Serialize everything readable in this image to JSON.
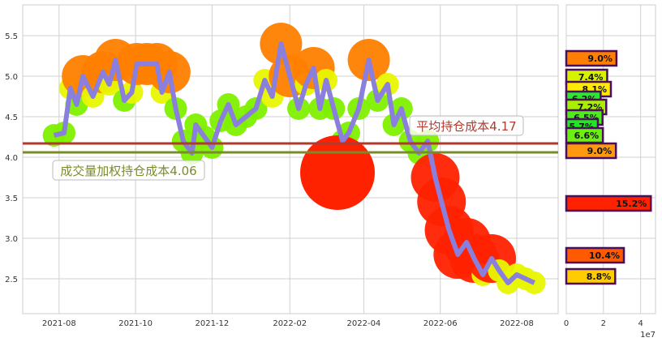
{
  "chart_data": [
    {
      "type": "line",
      "title": "",
      "xlabel": "",
      "ylabel": "",
      "ylim": [
        2.07,
        5.88
      ],
      "xlim": [
        "2021-07-03",
        "2022-09-03"
      ],
      "grid": true,
      "x_ticks": [
        "2021-08",
        "2021-10",
        "2021-12",
        "2022-02",
        "2022-04",
        "2022-06",
        "2022-08"
      ],
      "y_ticks": [
        "2.5",
        "3.0",
        "3.5",
        "4.0",
        "4.5",
        "5.0",
        "5.5"
      ],
      "line_color": "#8a7fdc",
      "x": [
        "2021-07-28",
        "2021-08-05",
        "2021-08-10",
        "2021-08-15",
        "2021-08-20",
        "2021-08-28",
        "2021-09-05",
        "2021-09-10",
        "2021-09-15",
        "2021-09-22",
        "2021-09-28",
        "2021-10-02",
        "2021-10-10",
        "2021-10-18",
        "2021-10-22",
        "2021-10-28",
        "2021-11-02",
        "2021-11-08",
        "2021-11-15",
        "2021-11-18",
        "2021-11-25",
        "2021-12-01",
        "2021-12-08",
        "2021-12-14",
        "2021-12-20",
        "2021-12-28",
        "2022-01-05",
        "2022-01-12",
        "2022-01-18",
        "2022-01-25",
        "2022-02-01",
        "2022-02-08",
        "2022-02-14",
        "2022-02-20",
        "2022-02-25",
        "2022-03-02",
        "2022-03-08",
        "2022-03-15",
        "2022-03-20",
        "2022-03-28",
        "2022-04-05",
        "2022-04-12",
        "2022-04-20",
        "2022-04-25",
        "2022-05-01",
        "2022-05-08",
        "2022-05-15",
        "2022-05-22",
        "2022-05-28",
        "2022-06-02",
        "2022-06-08",
        "2022-06-15",
        "2022-06-22",
        "2022-06-28",
        "2022-07-05",
        "2022-07-12",
        "2022-07-18",
        "2022-07-25",
        "2022-08-01",
        "2022-08-08",
        "2022-08-15"
      ],
      "y": [
        4.27,
        4.3,
        4.85,
        4.65,
        5.0,
        4.75,
        5.05,
        4.9,
        5.2,
        4.7,
        4.8,
        5.15,
        5.15,
        5.15,
        4.8,
        5.05,
        4.6,
        4.2,
        4.05,
        4.4,
        4.25,
        4.12,
        4.45,
        4.65,
        4.4,
        4.5,
        4.6,
        4.95,
        4.75,
        5.4,
        5.0,
        4.6,
        4.9,
        5.1,
        4.6,
        4.95,
        4.6,
        4.2,
        4.3,
        4.6,
        5.2,
        4.7,
        4.9,
        4.4,
        4.6,
        4.2,
        4.05,
        4.2,
        3.75,
        3.45,
        3.1,
        2.8,
        2.95,
        2.75,
        2.55,
        2.75,
        2.6,
        2.45,
        2.55,
        2.5,
        2.45
      ],
      "hlines": [
        {
          "label": "平均持仓成本4.17",
          "value": 4.17,
          "color": "#b03a2e"
        },
        {
          "label": "成交量加权持仓成本4.06",
          "value": 4.06,
          "color": "#7a8c2a"
        }
      ]
    },
    {
      "type": "bar",
      "orientation": "horizontal",
      "xlim": [
        0,
        4.8
      ],
      "x_ticks": [
        "0",
        "2",
        "4"
      ],
      "x_scale_label": "1e7",
      "bars": [
        {
          "price": 5.22,
          "value": 2.7,
          "label": "9.0%",
          "color": "#ff7f00"
        },
        {
          "price": 4.99,
          "value": 2.2,
          "label": "7.4%",
          "color": "#d7f200"
        },
        {
          "price": 4.84,
          "value": 2.4,
          "label": "8.1%",
          "color": "#ffea00"
        },
        {
          "price": 4.72,
          "value": 1.85,
          "label": "6.2%",
          "color": "#2ee62e"
        },
        {
          "price": 4.62,
          "value": 2.15,
          "label": "7.2%",
          "color": "#a8f000"
        },
        {
          "price": 4.49,
          "value": 1.95,
          "label": "6.5%",
          "color": "#50ea20"
        },
        {
          "price": 4.38,
          "value": 1.7,
          "label": "5.7%",
          "color": "#1ee81e"
        },
        {
          "price": 4.27,
          "value": 1.97,
          "label": "6.6%",
          "color": "#6cf010"
        },
        {
          "price": 4.08,
          "value": 2.67,
          "label": "9.0%",
          "color": "#ff9a10"
        },
        {
          "price": 3.43,
          "value": 4.55,
          "label": "15.2%",
          "color": "#ff2200"
        },
        {
          "price": 2.79,
          "value": 3.1,
          "label": "10.4%",
          "color": "#ff5a00"
        },
        {
          "price": 2.53,
          "value": 2.63,
          "label": "8.8%",
          "color": "#ffcc00"
        }
      ]
    }
  ]
}
